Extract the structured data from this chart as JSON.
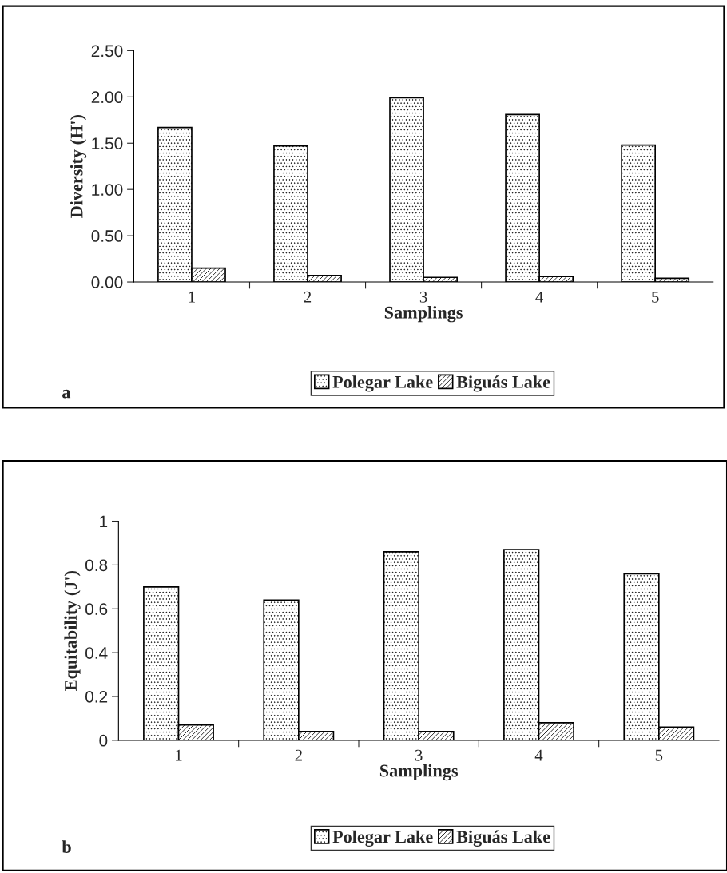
{
  "chart_data": [
    {
      "type": "bar",
      "categories": [
        "1",
        "2",
        "3",
        "4",
        "5"
      ],
      "xlabel": "Samplings",
      "ylabel": "Diversity (H')",
      "series": [
        {
          "name": "Polegar Lake",
          "color": "#000000",
          "values": [
            1.67,
            1.47,
            1.99,
            1.81,
            1.48
          ]
        },
        {
          "name": "Biguás Lake",
          "color": "#000000",
          "values": [
            0.15,
            0.07,
            0.05,
            0.06,
            0.04
          ]
        }
      ],
      "ylim": [
        0,
        2.5
      ],
      "yticks": [
        {
          "value": 0,
          "label": "0.00"
        },
        {
          "value": 0.5,
          "label": "0.50"
        },
        {
          "value": 1,
          "label": "1.00"
        },
        {
          "value": 1.5,
          "label": "1.50"
        },
        {
          "value": 2,
          "label": "2.00"
        },
        {
          "value": 2.5,
          "label": "2.50"
        }
      ],
      "grid": false,
      "legend": "bottom",
      "annotations": [
        "a"
      ]
    },
    {
      "type": "bar",
      "categories": [
        "1",
        "2",
        "3",
        "4",
        "5"
      ],
      "xlabel": "Samplings",
      "ylabel": "Equitability (J')",
      "series": [
        {
          "name": "Polegar Lake",
          "color": "#000000",
          "values": [
            0.7,
            0.64,
            0.86,
            0.87,
            0.76
          ]
        },
        {
          "name": "Biguás Lake",
          "color": "#000000",
          "values": [
            0.07,
            0.04,
            0.04,
            0.08,
            0.06
          ]
        }
      ],
      "ylim": [
        0,
        1
      ],
      "yticks": [
        0,
        0.2,
        0.4,
        0.6,
        0.8,
        1
      ],
      "grid": false,
      "legend": "bottom",
      "annotations": [
        "b"
      ]
    }
  ]
}
